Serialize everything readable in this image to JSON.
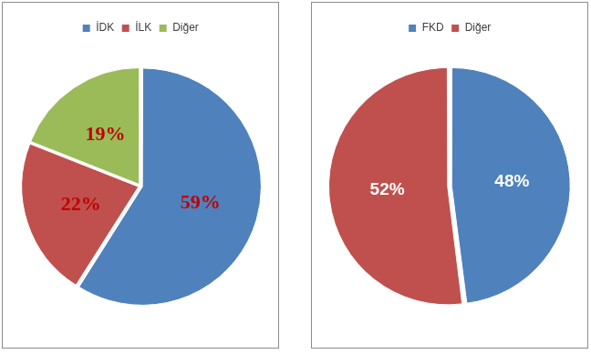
{
  "chart_data": [
    {
      "type": "pie",
      "categories": [
        "İDK",
        "İLK",
        "Diğer"
      ],
      "values": [
        59,
        22,
        19
      ],
      "value_labels": [
        "59%",
        "22%",
        "19%"
      ],
      "colors": [
        "#4f81bd",
        "#c0504d",
        "#9bbb59"
      ],
      "legend": "top",
      "data_labels": true
    },
    {
      "type": "pie",
      "categories": [
        "FKD",
        "Diğer"
      ],
      "values": [
        48,
        52
      ],
      "value_labels": [
        "48%",
        "52%"
      ],
      "colors": [
        "#4f81bd",
        "#c0504d"
      ],
      "legend": "top",
      "data_labels": true
    }
  ]
}
